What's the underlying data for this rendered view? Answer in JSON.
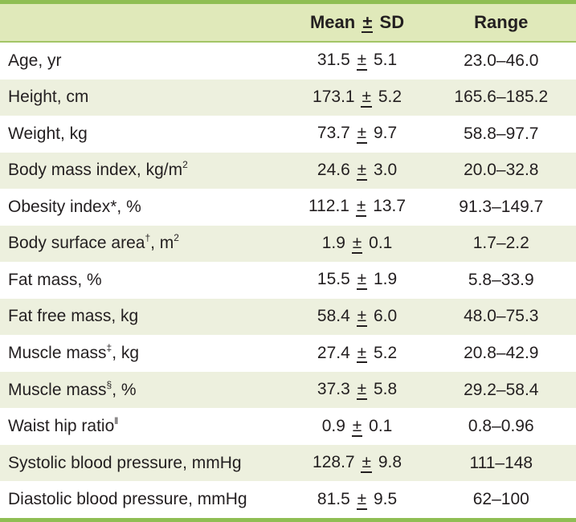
{
  "pm": "±",
  "colors": {
    "accent_green": "#8fbe53",
    "header_bg": "#e0e9ba",
    "header_rule": "#a3c566",
    "stripe_bg": "#edf0de",
    "text": "#231f20"
  },
  "header": {
    "label": "",
    "mean_label": "Mean",
    "pm": "±",
    "sd_label": "SD",
    "range_label": "Range"
  },
  "rows": [
    {
      "pre": "Age, yr",
      "mean": "31.5",
      "sd": "5.1",
      "range": "23.0–46.0"
    },
    {
      "pre": "Height, cm",
      "mean": "173.1",
      "sd": "5.2",
      "range": "165.6–185.2"
    },
    {
      "pre": "Weight, kg",
      "mean": "73.7",
      "sd": "9.7",
      "range": "58.8–97.7"
    },
    {
      "pre": "Body mass index, kg/m",
      "sup": "2",
      "mean": "24.6",
      "sd": "3.0",
      "range": "20.0–32.8"
    },
    {
      "pre": "Obesity index*, %",
      "mean": "112.1",
      "sd": "13.7",
      "range": "91.3–149.7"
    },
    {
      "pre": "Body surface area",
      "sup": "†",
      "mid": ", m",
      "sup2": "2",
      "mean": "1.9",
      "sd": "0.1",
      "range": "1.7–2.2"
    },
    {
      "pre": "Fat mass, %",
      "mean": "15.5",
      "sd": "1.9",
      "range": "5.8–33.9"
    },
    {
      "pre": "Fat free mass, kg",
      "mean": "58.4",
      "sd": "6.0",
      "range": "48.0–75.3"
    },
    {
      "pre": "Muscle mass",
      "sup": "‡",
      "mid": ", kg",
      "mean": "27.4",
      "sd": "5.2",
      "range": "20.8–42.9"
    },
    {
      "pre": "Muscle mass",
      "sup": "§",
      "mid": ", %",
      "mean": "37.3",
      "sd": "5.8",
      "range": "29.2–58.4"
    },
    {
      "pre": "Waist hip ratio",
      "sup": "‖",
      "mean": "0.9",
      "sd": "0.1",
      "range": "0.8–0.96"
    },
    {
      "pre": "Systolic blood pressure, mmHg",
      "mean": "128.7",
      "sd": "9.8",
      "range": "111–148"
    },
    {
      "pre": "Diastolic blood pressure, mmHg",
      "mean": "81.5",
      "sd": "9.5",
      "range": "62–100"
    }
  ]
}
